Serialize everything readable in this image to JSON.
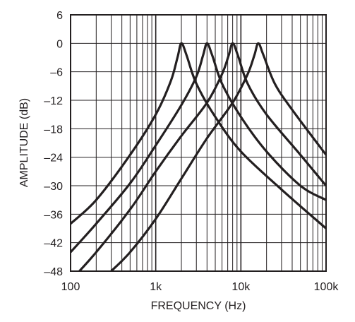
{
  "chart_data": {
    "type": "line",
    "title": "",
    "xlabel": "FREQUENCY (Hz)",
    "ylabel": "AMPLITUDE (dB)",
    "xscale": "log",
    "xlim": [
      100,
      100000
    ],
    "ylim": [
      -48,
      6
    ],
    "x_tick_values": [
      100,
      1000,
      10000,
      100000
    ],
    "x_tick_labels": [
      "100",
      "1k",
      "10k",
      "100k"
    ],
    "y_tick_values": [
      6,
      0,
      -6,
      -12,
      -18,
      -24,
      -30,
      -36,
      -42,
      -48
    ],
    "y_tick_labels": [
      "6",
      "0",
      "–6",
      "–12",
      "–18",
      "–24",
      "–30",
      "–36",
      "–42",
      "–48"
    ],
    "grid": true,
    "legend": "none",
    "line_color": "#231f20",
    "grid_color": "#231f20",
    "series": [
      {
        "x": [
          100,
          200,
          500,
          1000,
          1500,
          1800,
          2000,
          2300,
          3000,
          5000,
          10000,
          30000,
          100000
        ],
        "y": [
          -38,
          -33,
          -23.5,
          -15,
          -8,
          -3,
          0,
          -2.5,
          -8.5,
          -15.5,
          -22.8,
          -30.8,
          -39
        ]
      },
      {
        "x": [
          100,
          200,
          500,
          1000,
          2000,
          3000,
          3600,
          4000,
          4600,
          6000,
          10000,
          20000,
          50000,
          100000
        ],
        "y": [
          -44,
          -38,
          -29.5,
          -21.5,
          -13,
          -7,
          -2.5,
          0,
          -2.5,
          -8.5,
          -15.5,
          -22.8,
          -30,
          -33
        ]
      },
      {
        "x": [
          100,
          200,
          500,
          1000,
          2000,
          4000,
          6000,
          7200,
          8000,
          9200,
          12000,
          20000,
          50000,
          100000
        ],
        "y": [
          -50,
          -44,
          -35,
          -27,
          -19.5,
          -12.5,
          -6.5,
          -2.5,
          0,
          -2.5,
          -8.5,
          -15,
          -23.5,
          -30
        ]
      },
      {
        "x": [
          300,
          500,
          1000,
          2000,
          4000,
          8000,
          12000,
          14400,
          16000,
          18400,
          25000,
          40000,
          100000
        ],
        "y": [
          -48,
          -44,
          -37,
          -28.5,
          -20,
          -12.5,
          -6.5,
          -2.5,
          0,
          -2.5,
          -8.5,
          -14,
          -23.5
        ]
      }
    ]
  }
}
